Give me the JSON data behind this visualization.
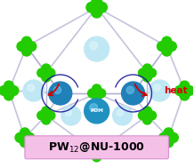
{
  "bg_color": "#ffffff",
  "line_color": "#9090c0",
  "green_color": "#22cc00",
  "blue_color": "#2288cc",
  "pale_color": "#c0e8f4",
  "heat_color": "#dd0000",
  "arrow_red": "#cc0000",
  "arrow_dark": "#1a1a99",
  "label_box": "#f5c0e8",
  "label_edge": "#d890d0",
  "heat_text": "heat",
  "pom_text": "POM",
  "label_text": "PW$_{12}$@NU-1000"
}
